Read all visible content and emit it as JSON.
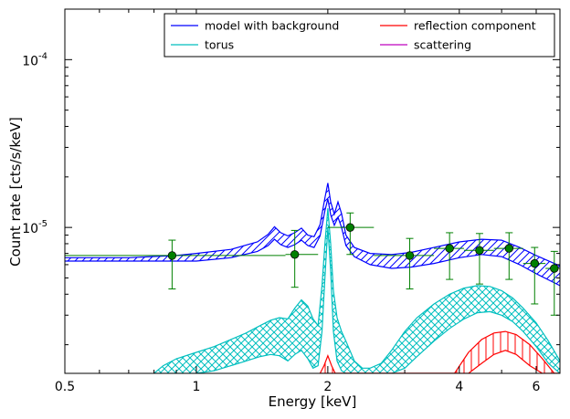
{
  "chart_data": {
    "type": "line",
    "xlabel": "Energy [keV]",
    "ylabel": "Count rate [cts/s/keV]",
    "x_scale": "log",
    "y_scale": "log",
    "xlim": [
      0.5,
      6.8
    ],
    "ylim": [
      1.35e-06,
      0.0002
    ],
    "x_ticks": [
      {
        "value": 0.5,
        "label": "0.5"
      },
      {
        "value": 1,
        "label": "1"
      },
      {
        "value": 2,
        "label": "2"
      },
      {
        "value": 4,
        "label": "4"
      },
      {
        "value": 6,
        "label": "6"
      }
    ],
    "y_ticks": [
      {
        "value": 1e-05,
        "base": "10",
        "exp": "-5"
      },
      {
        "value": 0.0001,
        "base": "10",
        "exp": "-4"
      }
    ],
    "legend": {
      "placement": "top-right",
      "entries": [
        {
          "label": "model with background",
          "color": "#0000ff"
        },
        {
          "label": "reflection component",
          "color": "#ff0000"
        },
        {
          "label": "torus",
          "color": "#00bfbf"
        },
        {
          "label": "scattering",
          "color": "#bf00bf"
        }
      ]
    },
    "series": [
      {
        "name": "model with background",
        "color": "#0000ff",
        "style": "band",
        "hatch": "diagonal",
        "x": [
          0.5,
          0.7,
          0.9,
          1.0,
          1.2,
          1.38,
          1.46,
          1.51,
          1.56,
          1.62,
          1.68,
          1.74,
          1.8,
          1.86,
          1.92,
          1.97,
          2.0,
          2.03,
          2.07,
          2.11,
          2.15,
          2.2,
          2.3,
          2.5,
          2.8,
          3.1,
          3.5,
          4.0,
          4.5,
          5.0,
          5.5,
          6.0,
          6.8
        ],
        "upper": [
          6.6e-06,
          6.6e-06,
          6.8e-06,
          7e-06,
          7.4e-06,
          8.2e-06,
          9.1e-06,
          1.01e-05,
          9.3e-06,
          8.9e-06,
          9.3e-06,
          9.9e-06,
          9e-06,
          8.8e-06,
          1.04e-05,
          1.5e-05,
          1.84e-05,
          1.42e-05,
          1.2e-05,
          1.42e-05,
          1.21e-05,
          9e-06,
          7.6e-06,
          7e-06,
          6.9e-06,
          7.1e-06,
          7.6e-06,
          8.2e-06,
          8.5e-06,
          8.4e-06,
          7.6e-06,
          6.8e-06,
          5.9e-06
        ],
        "lower": [
          6.3e-06,
          6.3e-06,
          6.3e-06,
          6.3e-06,
          6.6e-06,
          7.2e-06,
          7.8e-06,
          8.5e-06,
          7.9e-06,
          7.6e-06,
          7.9e-06,
          8.4e-06,
          7.8e-06,
          7.6e-06,
          8.9e-06,
          1.26e-05,
          1.48e-05,
          1.19e-05,
          1.03e-05,
          1.15e-05,
          1e-05,
          7.8e-06,
          6.7e-06,
          6e-06,
          5.7e-06,
          5.8e-06,
          6.1e-06,
          6.6e-06,
          6.9e-06,
          6.7e-06,
          6e-06,
          5.3e-06,
          4.5e-06
        ]
      },
      {
        "name": "torus",
        "color": "#00bfbf",
        "style": "band",
        "hatch": "crosshatch",
        "x": [
          0.8,
          0.84,
          0.9,
          1.0,
          1.1,
          1.2,
          1.3,
          1.4,
          1.48,
          1.55,
          1.62,
          1.68,
          1.74,
          1.8,
          1.85,
          1.9,
          1.94,
          1.97,
          2.0,
          2.03,
          2.06,
          2.1,
          2.15,
          2.2,
          2.3,
          2.4,
          2.5,
          2.65,
          2.8,
          3.0,
          3.2,
          3.5,
          3.8,
          4.1,
          4.4,
          4.7,
          5.0,
          5.3,
          5.6,
          6.0,
          6.4,
          6.8
        ],
        "upper": [
          1.35e-06,
          1.5e-06,
          1.65e-06,
          1.8e-06,
          1.95e-06,
          2.15e-06,
          2.35e-06,
          2.6e-06,
          2.8e-06,
          2.9e-06,
          2.85e-06,
          3.3e-06,
          3.7e-06,
          3.4e-06,
          2.85e-06,
          2.6e-06,
          4.5e-06,
          8e-06,
          1.3e-05,
          8e-06,
          4.2e-06,
          2.9e-06,
          2.4e-06,
          2.1e-06,
          1.6e-06,
          1.45e-06,
          1.45e-06,
          1.55e-06,
          1.85e-06,
          2.4e-06,
          2.9e-06,
          3.5e-06,
          4e-06,
          4.35e-06,
          4.5e-06,
          4.45e-06,
          4.2e-06,
          3.8e-06,
          3.3e-06,
          2.7e-06,
          2.1e-06,
          1.6e-06
        ],
        "lower": [
          1.35e-06,
          1.35e-06,
          1.35e-06,
          1.35e-06,
          1.4e-06,
          1.5e-06,
          1.6e-06,
          1.7e-06,
          1.75e-06,
          1.72e-06,
          1.6e-06,
          1.75e-06,
          1.85e-06,
          1.65e-06,
          1.45e-06,
          1.5e-06,
          2.4e-06,
          5e-06,
          1e-05,
          5.5e-06,
          2.4e-06,
          1.6e-06,
          1.4e-06,
          1.35e-06,
          1.35e-06,
          1.35e-06,
          1.35e-06,
          1.35e-06,
          1.35e-06,
          1.45e-06,
          1.7e-06,
          2.1e-06,
          2.5e-06,
          2.85e-06,
          3.1e-06,
          3.15e-06,
          3e-06,
          2.75e-06,
          2.4e-06,
          1.95e-06,
          1.55e-06,
          1.35e-06
        ]
      },
      {
        "name": "reflection component",
        "color": "#ff0000",
        "style": "band",
        "hatch": "vertical",
        "x": [
          1.92,
          1.96,
          2.0,
          2.04,
          2.08,
          3.9,
          4.2,
          4.5,
          4.8,
          5.1,
          5.4,
          5.8,
          6.2,
          6.6,
          6.8
        ],
        "upper": [
          1.35e-06,
          1.5e-06,
          1.72e-06,
          1.5e-06,
          1.35e-06,
          1.35e-06,
          1.8e-06,
          2.15e-06,
          2.35e-06,
          2.4e-06,
          2.3e-06,
          2e-06,
          1.65e-06,
          1.35e-06,
          1.35e-06
        ],
        "lower": [
          1.35e-06,
          1.35e-06,
          1.35e-06,
          1.35e-06,
          1.35e-06,
          1.35e-06,
          1.35e-06,
          1.55e-06,
          1.75e-06,
          1.85e-06,
          1.75e-06,
          1.5e-06,
          1.35e-06,
          1.35e-06,
          1.35e-06
        ]
      },
      {
        "name": "scattering",
        "color": "#bf00bf",
        "style": "line",
        "x": [],
        "y": []
      }
    ],
    "data_points": {
      "color": "#008000",
      "points": [
        {
          "x": 0.88,
          "xlo": 0.5,
          "xhi": 1.6,
          "y": 6.8e-06,
          "ylo": 4.3e-06,
          "yhi": 8.4e-06
        },
        {
          "x": 1.68,
          "xlo": 1.6,
          "xhi": 1.9,
          "y": 6.9e-06,
          "ylo": 4.4e-06,
          "yhi": 9.6e-06
        },
        {
          "x": 2.25,
          "xlo": 2.0,
          "xhi": 2.55,
          "y": 1e-05,
          "ylo": 6.9e-06,
          "yhi": 1.22e-05
        },
        {
          "x": 3.08,
          "xlo": 2.55,
          "xhi": 3.5,
          "y": 6.8e-06,
          "ylo": 4.3e-06,
          "yhi": 8.6e-06
        },
        {
          "x": 3.8,
          "xlo": 3.5,
          "xhi": 4.1,
          "y": 7.5e-06,
          "ylo": 4.9e-06,
          "yhi": 9.3e-06
        },
        {
          "x": 4.45,
          "xlo": 4.1,
          "xhi": 4.8,
          "y": 7.3e-06,
          "ylo": 4.6e-06,
          "yhi": 9.2e-06
        },
        {
          "x": 5.2,
          "xlo": 4.8,
          "xhi": 5.6,
          "y": 7.5e-06,
          "ylo": 4.9e-06,
          "yhi": 9.3e-06
        },
        {
          "x": 5.95,
          "xlo": 5.6,
          "xhi": 6.3,
          "y": 6.1e-06,
          "ylo": 3.5e-06,
          "yhi": 7.6e-06
        },
        {
          "x": 6.6,
          "xlo": 6.3,
          "xhi": 6.8,
          "y": 5.7e-06,
          "ylo": 3e-06,
          "yhi": 7.2e-06
        }
      ]
    }
  }
}
